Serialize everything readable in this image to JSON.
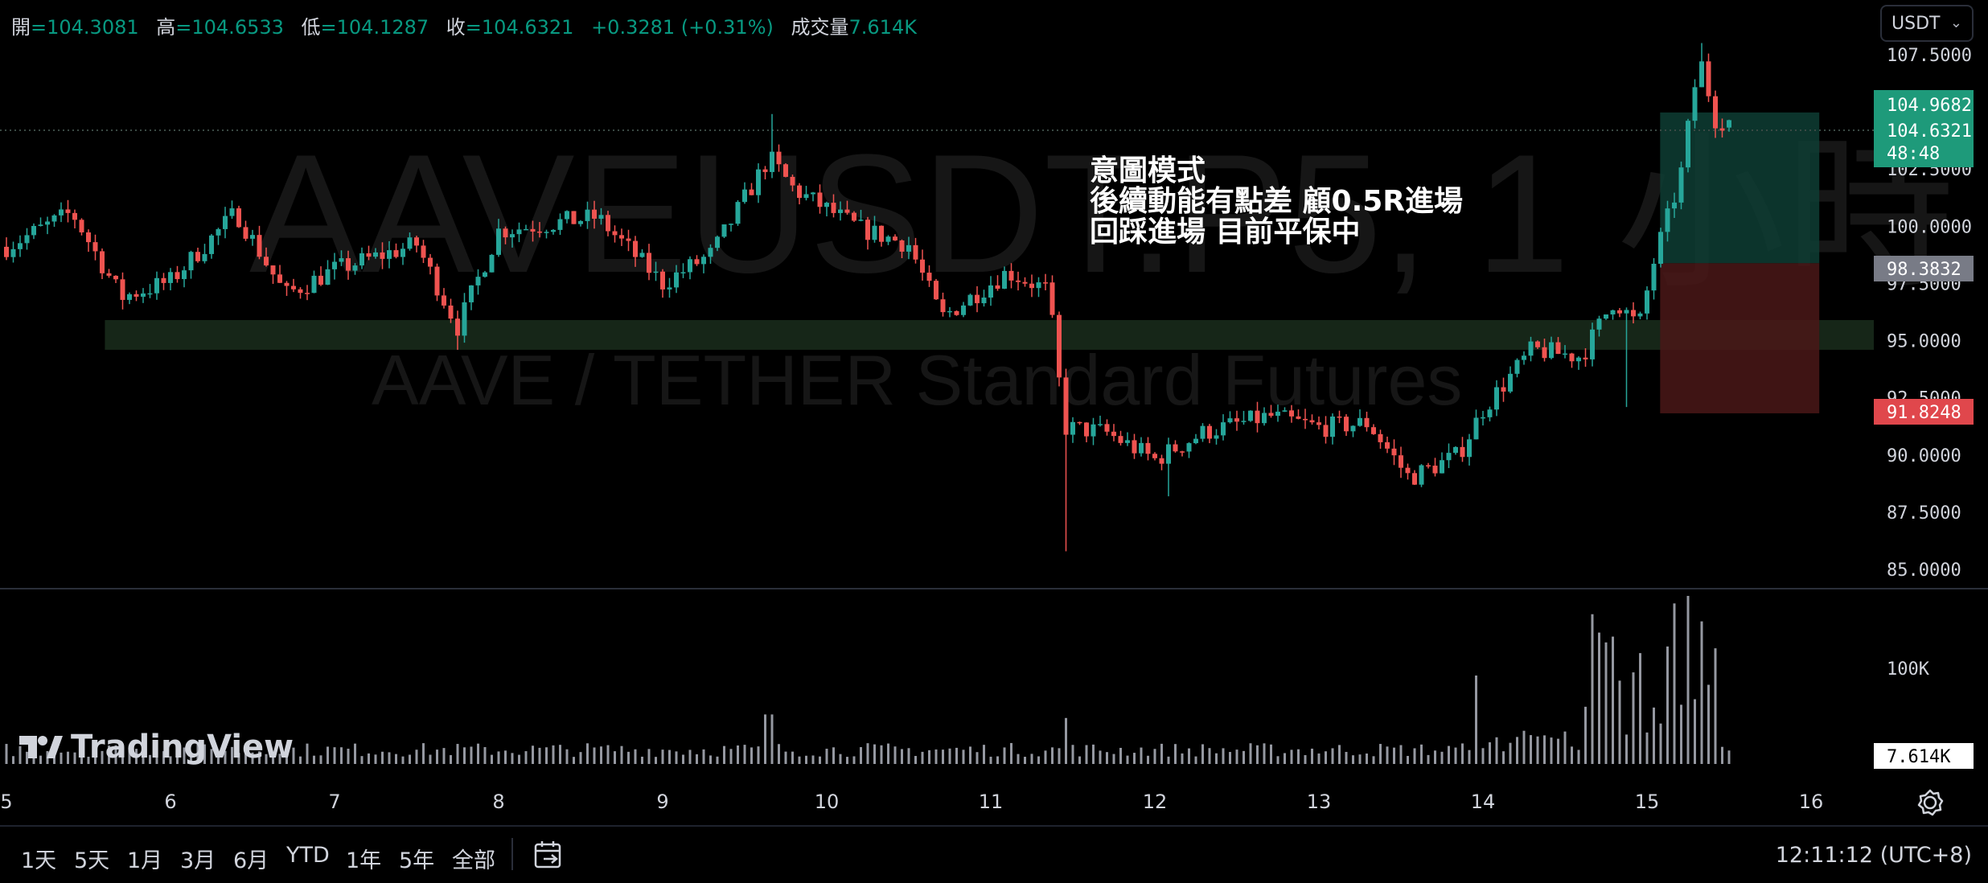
{
  "legend": {
    "open_label": "開",
    "open_value": "=104.3081",
    "high_label": "高",
    "high_value": "=104.6533",
    "low_label": "低",
    "low_value": "=104.1287",
    "close_label": "收",
    "close_value": "=104.6321",
    "change": "+0.3281 (+0.31%)",
    "volume_label": "成交量",
    "volume_value": "7.614K"
  },
  "currency_select": {
    "value": "USDT"
  },
  "watermark": {
    "symbol": "AAVEUSDT.P5, 1 小時",
    "description": "AAVE / TETHER Standard Futures"
  },
  "annotation": {
    "line1": "意圖模式",
    "line2": "後續動能有點差 顧0.5R進場",
    "line3": "回踩進場 目前平保中"
  },
  "price_labels": {
    "target": "104.9682",
    "last": "104.6321",
    "countdown": "48:48",
    "entry": "98.3832",
    "stop": "91.8248"
  },
  "volume_labels": {
    "axis_100k": "100K",
    "last": "7.614K"
  },
  "logo": {
    "text": "TradingView"
  },
  "bottom_bar": {
    "ranges": [
      "1天",
      "5天",
      "1月",
      "3月",
      "6月",
      "YTD",
      "1年",
      "5年",
      "全部"
    ],
    "time": "12:11:12 (UTC+8)"
  },
  "colors": {
    "up": "#26a69a",
    "down": "#ef5350",
    "zone": "#1e3320",
    "profit": "#0e3d34",
    "loss": "#4a1818"
  },
  "chart_data": {
    "type": "candlestick",
    "symbol": "AAVEUSDT.P",
    "timeframe": "1 小時",
    "price_axis_ticks": [
      107.5,
      102.5,
      100.0,
      97.5,
      95.0,
      92.5,
      90.0,
      87.5,
      85.0
    ],
    "price_axis_tick_labels": [
      "107.5000",
      "102.5000",
      "100.0000",
      "97.5000",
      "95.0000",
      "92.5000",
      "90.0000",
      "87.5000",
      "85.0000"
    ],
    "time_axis_ticks": [
      "5",
      "6",
      "7",
      "8",
      "9",
      "10",
      "11",
      "12",
      "13",
      "14",
      "15",
      "16"
    ],
    "ylim": [
      83.8,
      108.6
    ],
    "support_zone": {
      "low": 94.6,
      "high": 95.9,
      "from_day": 5.6,
      "to_day": 16.4
    },
    "position": {
      "entry": 98.3832,
      "target": 104.9682,
      "stop": 91.8248,
      "from_day": 15.08,
      "to_day": 16.05
    },
    "last_price": 104.6321,
    "key_points": [
      {
        "day": 5.0,
        "close": 99.1
      },
      {
        "day": 5.4,
        "close": 100.6
      },
      {
        "day": 5.7,
        "close": 96.9
      },
      {
        "day": 6.0,
        "close": 97.6
      },
      {
        "day": 6.4,
        "close": 100.6
      },
      {
        "day": 6.7,
        "close": 97.0
      },
      {
        "day": 7.0,
        "close": 98.1
      },
      {
        "day": 7.5,
        "close": 99.2
      },
      {
        "day": 7.75,
        "close": 95.6
      },
      {
        "day": 8.0,
        "close": 99.8
      },
      {
        "day": 8.6,
        "close": 100.4
      },
      {
        "day": 9.0,
        "close": 97.5
      },
      {
        "day": 9.3,
        "close": 98.8
      },
      {
        "day": 9.65,
        "close": 103.0
      },
      {
        "day": 9.8,
        "close": 101.6
      },
      {
        "day": 10.2,
        "close": 99.9
      },
      {
        "day": 10.5,
        "close": 99.2
      },
      {
        "day": 10.7,
        "close": 96.0
      },
      {
        "day": 11.1,
        "close": 98.0
      },
      {
        "day": 11.35,
        "close": 97.2
      },
      {
        "day": 11.45,
        "close": 91.2
      },
      {
        "day": 11.7,
        "close": 91.0
      },
      {
        "day": 12.0,
        "close": 89.8
      },
      {
        "day": 12.3,
        "close": 91.0
      },
      {
        "day": 12.7,
        "close": 91.7
      },
      {
        "day": 13.0,
        "close": 91.2
      },
      {
        "day": 13.3,
        "close": 91.4
      },
      {
        "day": 13.55,
        "close": 89.0
      },
      {
        "day": 13.85,
        "close": 90.0
      },
      {
        "day": 14.0,
        "close": 92.0
      },
      {
        "day": 14.3,
        "close": 94.6
      },
      {
        "day": 14.6,
        "close": 94.3
      },
      {
        "day": 14.8,
        "close": 96.8
      },
      {
        "day": 14.95,
        "close": 95.6
      },
      {
        "day": 15.05,
        "close": 98.7
      },
      {
        "day": 15.2,
        "close": 102.0
      },
      {
        "day": 15.32,
        "close": 107.4
      },
      {
        "day": 15.42,
        "close": 104.6
      },
      {
        "day": 15.5,
        "close": 104.63
      }
    ],
    "volume_key_points": [
      {
        "day": 5.0,
        "volume": 4
      },
      {
        "day": 9.65,
        "volume": 28
      },
      {
        "day": 11.45,
        "volume": 26
      },
      {
        "day": 13.95,
        "volume": 50
      },
      {
        "day": 14.8,
        "volume": 72
      },
      {
        "day": 15.25,
        "volume": 95
      },
      {
        "day": 15.5,
        "volume": 7.614
      }
    ],
    "volume_axis_ticks": [
      "100K"
    ]
  }
}
